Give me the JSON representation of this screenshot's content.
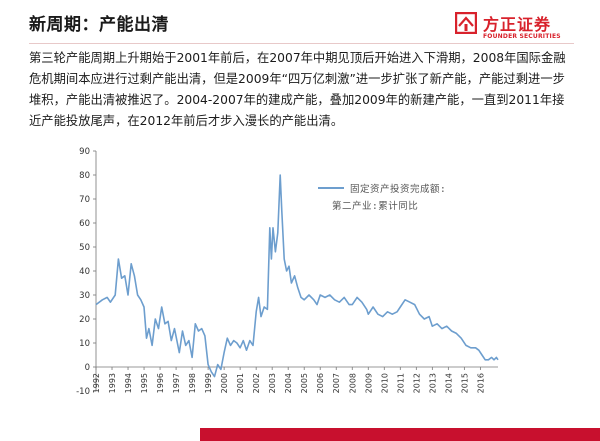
{
  "slide": {
    "title": "新周期：产能出清",
    "logo_cn": "方正证券",
    "logo_en": "FOUNDER SECURITIES",
    "brand_color": "#d8222c",
    "paragraph": "第三轮产能周期上升期始于2001年前后，在2007年中期见顶后开始进入下滑期，2008年国际金融危机期间本应进行过剩产能出清，但是2009年“四万亿刺激”进一步扩张了新产能，产能过剩进一步堆积，产能出清被推迟了。2004-2007年的建成产能，叠加2009年的新建产能，一直到2011年接近产能投放尾声，在2012年前后才步入漫长的产能出清。"
  },
  "chart_data": {
    "type": "line",
    "legend": [
      "固定资产投资完成额:",
      "第二产业:累计同比"
    ],
    "legend_position": "top-right",
    "line_color": "#6d9ece",
    "ylim": [
      -10,
      90
    ],
    "yticks": [
      -10,
      0,
      10,
      20,
      30,
      40,
      50,
      60,
      70,
      80,
      90
    ],
    "xticks": [
      "1992",
      "1993",
      "1994",
      "1995",
      "1996",
      "1997",
      "1998",
      "1999",
      "2000",
      "2001",
      "2002",
      "2003",
      "2004",
      "2005",
      "2006",
      "2007",
      "2008",
      "2009",
      "2010",
      "2011",
      "2012",
      "2013",
      "2014",
      "2015",
      "2016"
    ],
    "xlim": [
      1992,
      2017.1
    ],
    "series": [
      {
        "points": [
          [
            1992.0,
            26
          ],
          [
            1992.4,
            28
          ],
          [
            1992.7,
            29
          ],
          [
            1992.9,
            27
          ],
          [
            1993.2,
            30
          ],
          [
            1993.4,
            45
          ],
          [
            1993.6,
            37
          ],
          [
            1993.8,
            38
          ],
          [
            1994.0,
            30
          ],
          [
            1994.2,
            43
          ],
          [
            1994.4,
            38
          ],
          [
            1994.6,
            30
          ],
          [
            1994.8,
            28
          ],
          [
            1995.0,
            25
          ],
          [
            1995.15,
            12
          ],
          [
            1995.3,
            16
          ],
          [
            1995.5,
            9
          ],
          [
            1995.7,
            20
          ],
          [
            1995.9,
            16
          ],
          [
            1996.1,
            25
          ],
          [
            1996.3,
            18
          ],
          [
            1996.5,
            19
          ],
          [
            1996.7,
            11
          ],
          [
            1996.9,
            16
          ],
          [
            1997.2,
            6
          ],
          [
            1997.4,
            15
          ],
          [
            1997.6,
            9
          ],
          [
            1997.8,
            11
          ],
          [
            1998.0,
            4
          ],
          [
            1998.2,
            18
          ],
          [
            1998.4,
            15
          ],
          [
            1998.6,
            16
          ],
          [
            1998.8,
            13
          ],
          [
            1999.0,
            1
          ],
          [
            1999.2,
            -2
          ],
          [
            1999.4,
            -4
          ],
          [
            1999.6,
            1
          ],
          [
            1999.8,
            -1
          ],
          [
            2000.0,
            6
          ],
          [
            2000.2,
            12
          ],
          [
            2000.4,
            9
          ],
          [
            2000.6,
            11
          ],
          [
            2000.8,
            10
          ],
          [
            2001.0,
            8
          ],
          [
            2001.2,
            11
          ],
          [
            2001.4,
            7
          ],
          [
            2001.6,
            11
          ],
          [
            2001.8,
            9
          ],
          [
            2002.0,
            23
          ],
          [
            2002.15,
            29
          ],
          [
            2002.3,
            21
          ],
          [
            2002.5,
            25
          ],
          [
            2002.7,
            24
          ],
          [
            2002.85,
            58
          ],
          [
            2002.95,
            45
          ],
          [
            2003.05,
            58
          ],
          [
            2003.2,
            48
          ],
          [
            2003.35,
            56
          ],
          [
            2003.5,
            80
          ],
          [
            2003.6,
            65
          ],
          [
            2003.75,
            45
          ],
          [
            2003.9,
            40
          ],
          [
            2004.05,
            42
          ],
          [
            2004.2,
            35
          ],
          [
            2004.4,
            38
          ],
          [
            2004.6,
            33
          ],
          [
            2004.8,
            29
          ],
          [
            2005.0,
            28
          ],
          [
            2005.3,
            30
          ],
          [
            2005.6,
            28
          ],
          [
            2005.8,
            26
          ],
          [
            2006.0,
            30
          ],
          [
            2006.3,
            29
          ],
          [
            2006.6,
            30
          ],
          [
            2006.9,
            28
          ],
          [
            2007.2,
            27
          ],
          [
            2007.5,
            29
          ],
          [
            2007.8,
            26
          ],
          [
            2008.0,
            26
          ],
          [
            2008.3,
            29
          ],
          [
            2008.6,
            27
          ],
          [
            2008.9,
            24
          ],
          [
            2009.0,
            22
          ],
          [
            2009.3,
            25
          ],
          [
            2009.6,
            22
          ],
          [
            2009.9,
            21
          ],
          [
            2010.2,
            23
          ],
          [
            2010.5,
            22
          ],
          [
            2010.8,
            23
          ],
          [
            2011.0,
            25
          ],
          [
            2011.3,
            28
          ],
          [
            2011.6,
            27
          ],
          [
            2011.9,
            26
          ],
          [
            2012.2,
            22
          ],
          [
            2012.5,
            20
          ],
          [
            2012.8,
            21
          ],
          [
            2013.0,
            17
          ],
          [
            2013.3,
            18
          ],
          [
            2013.6,
            16
          ],
          [
            2013.9,
            17
          ],
          [
            2014.2,
            15
          ],
          [
            2014.5,
            14
          ],
          [
            2014.8,
            12
          ],
          [
            2015.1,
            9
          ],
          [
            2015.4,
            8
          ],
          [
            2015.7,
            8
          ],
          [
            2015.9,
            7
          ],
          [
            2016.1,
            5
          ],
          [
            2016.3,
            3
          ],
          [
            2016.5,
            3
          ],
          [
            2016.7,
            4
          ],
          [
            2016.85,
            3
          ],
          [
            2017.0,
            4
          ],
          [
            2017.1,
            3
          ]
        ]
      }
    ]
  }
}
